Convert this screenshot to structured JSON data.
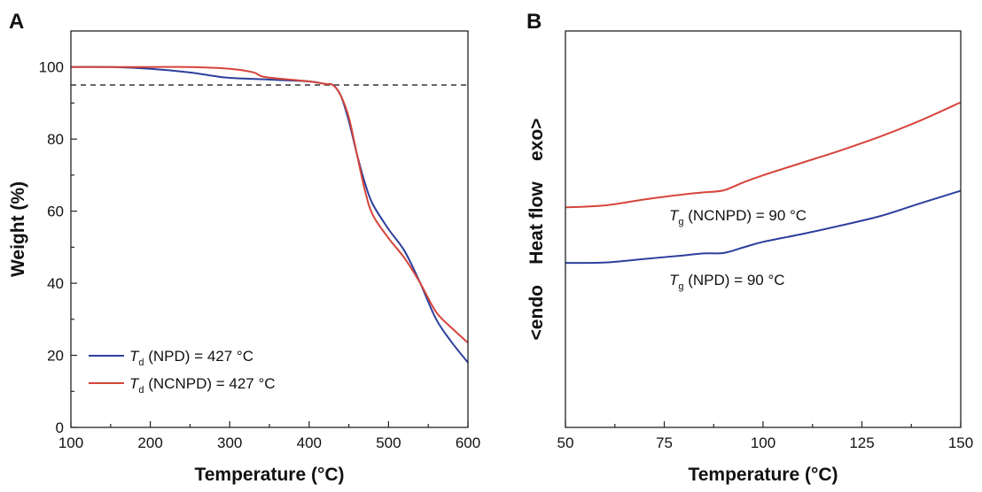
{
  "colors": {
    "npd": "#2c3f9c",
    "ncnpd": "#d6443a",
    "axis": "#222222",
    "dashed": "#222222"
  },
  "panels": {
    "A": {
      "letter": "A",
      "xlabel": "Temperature (°C)",
      "ylabel": "Weight (%)",
      "legend": [
        {
          "symbol": "T",
          "sub": "d",
          "text": " (NPD) = 427 °C"
        },
        {
          "symbol": "T",
          "sub": "d",
          "text": " (NCNPD) = 427 °C"
        }
      ]
    },
    "B": {
      "letter": "B",
      "xlabel": "Temperature (°C)",
      "ylabel": "<endo    Heat flow    exo>",
      "annotations": [
        {
          "symbol": "T",
          "sub": "g",
          "text": " (NCNPD) = 90 °C"
        },
        {
          "symbol": "T",
          "sub": "g",
          "text": " (NPD) = 90 °C"
        }
      ]
    }
  },
  "chart_data": [
    {
      "type": "line",
      "panel": "A",
      "xlabel": "Temperature (°C)",
      "ylabel": "Weight (%)",
      "xlim": [
        100,
        600
      ],
      "ylim": [
        0,
        110
      ],
      "xticks": [
        100,
        200,
        300,
        400,
        500,
        600
      ],
      "yticks": [
        0,
        20,
        40,
        60,
        80,
        100
      ],
      "reference_line": {
        "y": 95,
        "style": "dashed"
      },
      "grid": false,
      "legend_position": "bottom-left",
      "series": [
        {
          "name": "Td (NPD) = 427 °C",
          "color": "#2c3f9c",
          "x": [
            100,
            150,
            200,
            250,
            280,
            300,
            350,
            400,
            420,
            430,
            440,
            450,
            460,
            470,
            480,
            500,
            520,
            540,
            560,
            580,
            600
          ],
          "y": [
            100,
            100,
            99.5,
            98.5,
            97.5,
            97,
            96.5,
            96,
            95.3,
            95,
            92,
            85,
            76,
            68,
            62,
            55,
            49,
            40,
            30,
            23.5,
            18
          ]
        },
        {
          "name": "Td (NCNPD) = 427 °C",
          "color": "#d6443a",
          "x": [
            100,
            150,
            200,
            250,
            300,
            330,
            345,
            400,
            420,
            430,
            440,
            450,
            460,
            470,
            480,
            500,
            520,
            540,
            560,
            580,
            600
          ],
          "y": [
            100,
            100,
            100,
            100,
            99.5,
            98.5,
            97.2,
            96,
            95.3,
            95,
            92,
            86,
            76,
            66,
            59,
            52.5,
            47,
            40,
            32,
            27.5,
            23.5
          ]
        }
      ]
    },
    {
      "type": "line",
      "panel": "B",
      "xlabel": "Temperature (°C)",
      "ylabel": "<endo    Heat flow    exo>",
      "xlim": [
        50,
        150
      ],
      "ylim": [
        0,
        100
      ],
      "yticks": [],
      "xticks": [
        50,
        75,
        100,
        125,
        150
      ],
      "grid": false,
      "series": [
        {
          "name": "Tg (NCNPD) = 90 °C",
          "color": "#d6443a",
          "x": [
            50,
            60,
            70,
            80,
            85,
            90,
            95,
            100,
            110,
            120,
            130,
            140,
            150
          ],
          "y": [
            55.5,
            56,
            57.5,
            58.8,
            59.3,
            59.8,
            61.8,
            63.6,
            66.8,
            70,
            73.5,
            77.5,
            82
          ]
        },
        {
          "name": "Tg (NPD) = 90 °C",
          "color": "#2c3f9c",
          "x": [
            50,
            60,
            70,
            80,
            85,
            90,
            95,
            100,
            110,
            120,
            130,
            140,
            150
          ],
          "y": [
            41.5,
            41.6,
            42.5,
            43.4,
            43.9,
            44,
            45.4,
            46.8,
            48.8,
            51,
            53.4,
            56.6,
            59.7
          ]
        }
      ]
    }
  ]
}
